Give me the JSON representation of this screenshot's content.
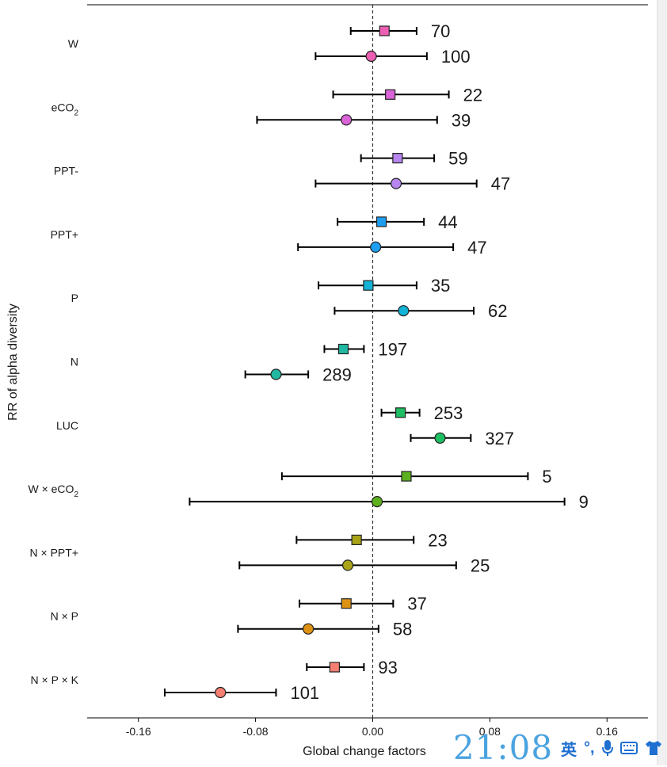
{
  "chart_data": {
    "type": "forest",
    "xlabel": "Global change factors",
    "ylabel": "RR of alpha diversity",
    "xlim": [
      -0.195,
      0.188
    ],
    "xticks": [
      -0.16,
      -0.08,
      0.0,
      0.08,
      0.16
    ],
    "xtick_labels": [
      "-0.16",
      "-0.08",
      "0.00",
      "0.08",
      "0.16"
    ],
    "reference_line": 0,
    "grid": false,
    "categories": [
      {
        "label": "W",
        "color": "#ec5fb3",
        "square": {
          "value": 0.008,
          "low": -0.015,
          "high": 0.03,
          "n": "70"
        },
        "circle": {
          "value": -0.001,
          "low": -0.039,
          "high": 0.037,
          "n": "100"
        }
      },
      {
        "label": "eCO2",
        "color": "#db63d8",
        "square": {
          "value": 0.012,
          "low": -0.027,
          "high": 0.052,
          "n": "22"
        },
        "circle": {
          "value": -0.018,
          "low": -0.079,
          "high": 0.044,
          "n": "39"
        }
      },
      {
        "label": "PPT-",
        "color": "#b685ef",
        "square": {
          "value": 0.017,
          "low": -0.008,
          "high": 0.042,
          "n": "59"
        },
        "circle": {
          "value": 0.016,
          "low": -0.039,
          "high": 0.071,
          "n": "47"
        }
      },
      {
        "label": "PPT+",
        "color": "#1e9ef0",
        "square": {
          "value": 0.006,
          "low": -0.024,
          "high": 0.035,
          "n": "44"
        },
        "circle": {
          "value": 0.002,
          "low": -0.051,
          "high": 0.055,
          "n": "47"
        }
      },
      {
        "label": "P",
        "color": "#12b3d6",
        "square": {
          "value": -0.003,
          "low": -0.037,
          "high": 0.03,
          "n": "35"
        },
        "circle": {
          "value": 0.021,
          "low": -0.026,
          "high": 0.069,
          "n": "62"
        }
      },
      {
        "label": "N",
        "color": "#20b8a0",
        "square": {
          "value": -0.02,
          "low": -0.033,
          "high": -0.006,
          "n": "197"
        },
        "circle": {
          "value": -0.066,
          "low": -0.087,
          "high": -0.044,
          "n": "289"
        }
      },
      {
        "label": "LUC",
        "color": "#1dbf62",
        "square": {
          "value": 0.019,
          "low": 0.006,
          "high": 0.032,
          "n": "253"
        },
        "circle": {
          "value": 0.046,
          "low": 0.026,
          "high": 0.067,
          "n": "327"
        }
      },
      {
        "label": "W × eCO2",
        "color": "#5db01d",
        "square": {
          "value": 0.023,
          "low": -0.062,
          "high": 0.106,
          "n": "5"
        },
        "circle": {
          "value": 0.003,
          "low": -0.125,
          "high": 0.131,
          "n": "9"
        }
      },
      {
        "label": "N × PPT+",
        "color": "#a8a317",
        "square": {
          "value": -0.011,
          "low": -0.052,
          "high": 0.028,
          "n": "23"
        },
        "circle": {
          "value": -0.017,
          "low": -0.091,
          "high": 0.057,
          "n": "25"
        }
      },
      {
        "label": "N × P",
        "color": "#de9214",
        "square": {
          "value": -0.018,
          "low": -0.05,
          "high": 0.014,
          "n": "37"
        },
        "circle": {
          "value": -0.044,
          "low": -0.092,
          "high": 0.004,
          "n": "58"
        }
      },
      {
        "label": "N × P × K",
        "color": "#f57f72",
        "square": {
          "value": -0.026,
          "low": -0.045,
          "high": -0.006,
          "n": "93"
        },
        "circle": {
          "value": -0.104,
          "low": -0.142,
          "high": -0.066,
          "n": "101"
        }
      }
    ]
  },
  "taskbar": {
    "clock": "21:08",
    "ime_label": "英"
  },
  "colors": {
    "axis": "#000000",
    "marker_stroke": "#222222",
    "text": "#1a1a1a"
  }
}
